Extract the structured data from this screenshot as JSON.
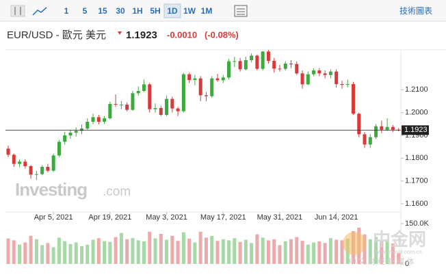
{
  "toolbar": {
    "intervals": [
      "1",
      "5",
      "15",
      "30",
      "1H",
      "5H",
      "1D",
      "1W",
      "1M"
    ],
    "active": "1D",
    "chart_link": "技術圖表"
  },
  "header": {
    "symbol": "EUR/USD - 歐元 美元",
    "price": "1.1923",
    "change": "-0.0010",
    "change_pct": "(-0.08%)"
  },
  "watermark": {
    "brand": "Investing",
    "suffix": ".com",
    "logo": "中金网",
    "url": "www.cngold.com.cn",
    "tagline": "中 文 财 经 新 媒 体"
  },
  "chart_data": {
    "type": "candlestick",
    "categories": [
      null,
      null,
      null,
      null,
      null,
      null,
      null,
      null,
      "Apr 5, 2021",
      null,
      null,
      null,
      null,
      null,
      null,
      null,
      null,
      null,
      "Apr 19, 2021",
      null,
      null,
      null,
      null,
      null,
      null,
      null,
      null,
      null,
      "May 3, 2021",
      null,
      null,
      null,
      null,
      null,
      null,
      null,
      null,
      null,
      "May 17, 2021",
      null,
      null,
      null,
      null,
      null,
      null,
      null,
      null,
      null,
      "May 31, 2021",
      null,
      null,
      null,
      null,
      null,
      null,
      null,
      null,
      null,
      "Jun 14, 2021",
      null,
      null,
      null,
      null,
      null,
      null,
      null,
      null,
      null,
      null,
      null
    ],
    "open": [
      1.1842,
      1.1815,
      1.1775,
      1.1785,
      1.1765,
      1.1728,
      1.173,
      1.1762,
      1.1745,
      1.1812,
      1.1872,
      1.19,
      1.1912,
      1.192,
      1.193,
      1.196,
      1.198,
      1.196,
      1.1975,
      1.2038,
      1.2035,
      1.2035,
      1.2012,
      1.2085,
      1.2095,
      1.2124,
      1.2015,
      1.202,
      1.199,
      1.206,
      1.2018,
      1.2006,
      1.2168,
      1.2143,
      1.215,
      1.2076,
      1.2072,
      1.215,
      1.2142,
      1.2154,
      1.2225,
      1.2226,
      1.219,
      1.223,
      1.225,
      1.2192,
      1.2268,
      1.2227,
      1.2193,
      1.2192,
      1.2215,
      1.2213,
      1.2172,
      1.2124,
      1.2168,
      1.2185,
      1.2172,
      1.2165,
      1.218,
      1.2125,
      1.2122,
      1.2125,
      1.1995,
      1.1905,
      1.186,
      1.1892,
      1.194,
      1.1925,
      1.1937,
      1.1925
    ],
    "high": [
      1.1855,
      1.182,
      1.1795,
      1.1795,
      1.177,
      1.1745,
      1.177,
      1.1775,
      1.182,
      1.188,
      1.1915,
      1.1925,
      1.1935,
      1.1948,
      1.1975,
      1.1995,
      1.199,
      1.1985,
      1.2048,
      1.208,
      1.205,
      1.2045,
      1.2095,
      1.2115,
      1.2145,
      1.213,
      1.204,
      1.203,
      1.2075,
      1.207,
      1.2025,
      1.2175,
      1.2175,
      1.2165,
      1.216,
      1.209,
      1.216,
      1.217,
      1.2165,
      1.2235,
      1.2245,
      1.224,
      1.2245,
      1.226,
      1.2255,
      1.227,
      1.2275,
      1.224,
      1.221,
      1.2225,
      1.223,
      1.2225,
      1.2185,
      1.218,
      1.2195,
      1.2195,
      1.2185,
      1.219,
      1.219,
      1.214,
      1.2145,
      1.2135,
      1.2,
      1.1915,
      1.1905,
      1.195,
      1.1965,
      1.1975,
      1.1945,
      1.1932
    ],
    "low": [
      1.1805,
      1.1762,
      1.176,
      1.1755,
      1.171,
      1.1705,
      1.1725,
      1.1738,
      1.174,
      1.1805,
      1.186,
      1.1885,
      1.1895,
      1.1905,
      1.1925,
      1.195,
      1.1948,
      1.195,
      1.197,
      1.2025,
      1.2015,
      1.2005,
      1.2008,
      1.2075,
      1.209,
      1.2,
      1.2,
      1.1985,
      1.1985,
      1.2,
      1.1985,
      1.2,
      1.213,
      1.212,
      1.205,
      1.205,
      1.2065,
      1.2135,
      1.213,
      1.2145,
      1.22,
      1.218,
      1.2185,
      1.222,
      1.2185,
      1.2185,
      1.2215,
      1.2175,
      1.218,
      1.2185,
      1.2195,
      1.2165,
      1.2105,
      1.212,
      1.216,
      1.216,
      1.215,
      1.215,
      1.211,
      1.2105,
      1.211,
      1.199,
      1.1892,
      1.1845,
      1.1845,
      1.1885,
      1.191,
      1.192,
      1.1915,
      1.1918
    ],
    "close": [
      1.1815,
      1.1775,
      1.1785,
      1.1765,
      1.1728,
      1.173,
      1.1762,
      1.1745,
      1.1812,
      1.1872,
      1.19,
      1.1912,
      1.192,
      1.193,
      1.196,
      1.198,
      1.196,
      1.1975,
      1.2038,
      1.2035,
      1.2035,
      1.2012,
      1.2085,
      1.2095,
      1.2124,
      1.2015,
      1.202,
      1.199,
      1.206,
      1.2018,
      1.2006,
      1.2168,
      1.2143,
      1.215,
      1.2076,
      1.2072,
      1.215,
      1.2142,
      1.2154,
      1.2225,
      1.2226,
      1.219,
      1.223,
      1.225,
      1.2192,
      1.2268,
      1.2227,
      1.2193,
      1.2192,
      1.2215,
      1.2213,
      1.2172,
      1.2124,
      1.2168,
      1.2185,
      1.2172,
      1.2165,
      1.218,
      1.2125,
      1.2122,
      1.2125,
      1.1995,
      1.1905,
      1.186,
      1.1892,
      1.194,
      1.1925,
      1.1937,
      1.1925,
      1.1923
    ],
    "volume": {
      "axis": "y2",
      "values": [
        95000,
        88000,
        72000,
        80000,
        105000,
        92000,
        70000,
        78000,
        62000,
        98000,
        85000,
        74000,
        80000,
        66000,
        72000,
        90000,
        96000,
        85000,
        82000,
        100000,
        115000,
        92000,
        96000,
        88000,
        84000,
        120000,
        95000,
        112000,
        90000,
        105000,
        86000,
        118000,
        94000,
        80000,
        120000,
        98000,
        104000,
        86000,
        92000,
        88000,
        96000,
        82000,
        90000,
        78000,
        110000,
        98000,
        88000,
        92000,
        70000,
        84000,
        92000,
        100000,
        86000,
        72000,
        80000,
        84000,
        78000,
        96000,
        90000,
        88000,
        94000,
        122000,
        135000,
        110000,
        92000,
        100000,
        84000,
        90000,
        76000,
        40000
      ]
    },
    "last_price": 1.1923,
    "ylim": [
      1.1555,
      1.2275
    ],
    "yticks": [
      {
        "value": 1.16,
        "label": "1.1600"
      },
      {
        "value": 1.17,
        "label": "1.1700"
      },
      {
        "value": 1.18,
        "label": "1.1800"
      },
      {
        "value": 1.19,
        "label": "1.1900"
      },
      {
        "value": 1.2,
        "label": "1.2000"
      },
      {
        "value": 1.21,
        "label": "1.2100"
      }
    ],
    "y2lim": [
      0,
      150000
    ],
    "y2ticks": [
      0,
      {
        "value": 150000,
        "label": "150.0K"
      }
    ],
    "up_color": "#3caa3c",
    "down_color": "#d83a3a",
    "volume_up_color": "#a6d9a6",
    "volume_down_color": "#eeaaaa"
  }
}
